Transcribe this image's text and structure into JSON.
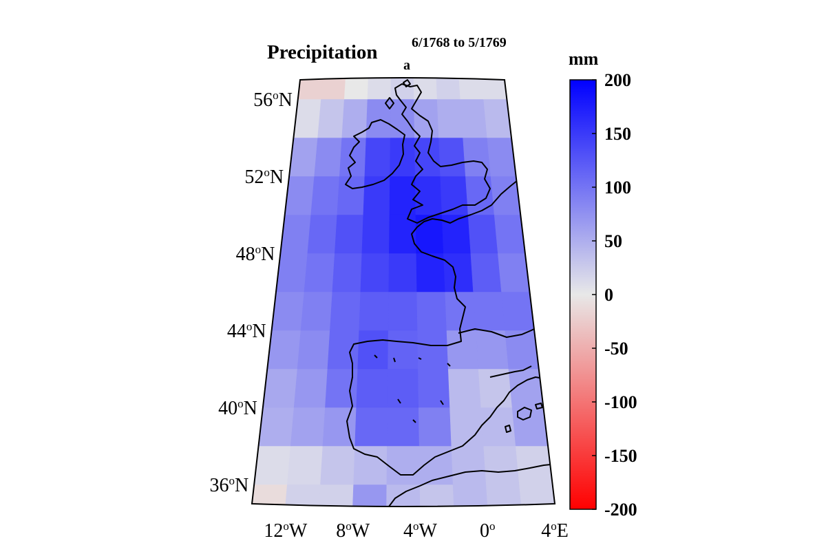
{
  "map": {
    "title_main": "Precipitation",
    "title_sub": "a",
    "title_period": "6/1768 to 5/1769",
    "lat_labels": [
      {
        "deg": "56",
        "unit": "o",
        "hem": "N",
        "lat": 56
      },
      {
        "deg": "52",
        "unit": "o",
        "hem": "N",
        "lat": 52
      },
      {
        "deg": "48",
        "unit": "o",
        "hem": "N",
        "lat": 48
      },
      {
        "deg": "44",
        "unit": "o",
        "hem": "N",
        "lat": 44
      },
      {
        "deg": "40",
        "unit": "o",
        "hem": "N",
        "lat": 40
      },
      {
        "deg": "36",
        "unit": "o",
        "hem": "N",
        "lat": 36
      }
    ],
    "lon_labels": [
      {
        "deg": "12",
        "unit": "o",
        "hem": "W",
        "lon": -12
      },
      {
        "deg": "8",
        "unit": "o",
        "hem": "W",
        "lon": -8
      },
      {
        "deg": "4",
        "unit": "o",
        "hem": "W",
        "lon": -4
      },
      {
        "deg": "0",
        "unit": "o",
        "hem": "",
        "lon": 0
      },
      {
        "deg": "4",
        "unit": "o",
        "hem": "E",
        "lon": 4
      }
    ],
    "lon_range": [
      -14,
      4
    ],
    "lat_range": [
      35,
      57
    ],
    "grid_step_deg": 2,
    "colors": {
      "negative": "#ff0000",
      "zero": "#e8e8e8",
      "positive": "#0000ff",
      "coast": "#000000"
    },
    "grid_values_rows_south_to_north": [
      [
        -10,
        20,
        20,
        70,
        40,
        30,
        40,
        30,
        20
      ],
      [
        10,
        15,
        30,
        40,
        50,
        50,
        40,
        30,
        20
      ],
      [
        50,
        60,
        70,
        110,
        110,
        90,
        40,
        40,
        60
      ],
      [
        55,
        70,
        100,
        120,
        120,
        110,
        40,
        30,
        60
      ],
      [
        70,
        80,
        110,
        130,
        115,
        110,
        70,
        70,
        80
      ],
      [
        80,
        90,
        110,
        120,
        120,
        110,
        100,
        100,
        100
      ],
      [
        90,
        100,
        120,
        140,
        150,
        170,
        160,
        120,
        90
      ],
      [
        90,
        110,
        130,
        150,
        170,
        180,
        170,
        130,
        100
      ],
      [
        80,
        100,
        110,
        150,
        170,
        160,
        150,
        110,
        90
      ],
      [
        60,
        80,
        100,
        140,
        150,
        140,
        130,
        90,
        80
      ],
      [
        10,
        30,
        50,
        80,
        80,
        60,
        50,
        50,
        40
      ],
      [
        -20,
        -20,
        0,
        10,
        20,
        10,
        20,
        10,
        10
      ]
    ]
  },
  "colorbar": {
    "unit": "mm",
    "min": -200,
    "max": 200,
    "ticks": [
      "200",
      "150",
      "100",
      "50",
      "0",
      "-50",
      "-100",
      "-150",
      "-200"
    ],
    "tick_values": [
      200,
      150,
      100,
      50,
      0,
      -50,
      -100,
      -150,
      -200
    ]
  }
}
